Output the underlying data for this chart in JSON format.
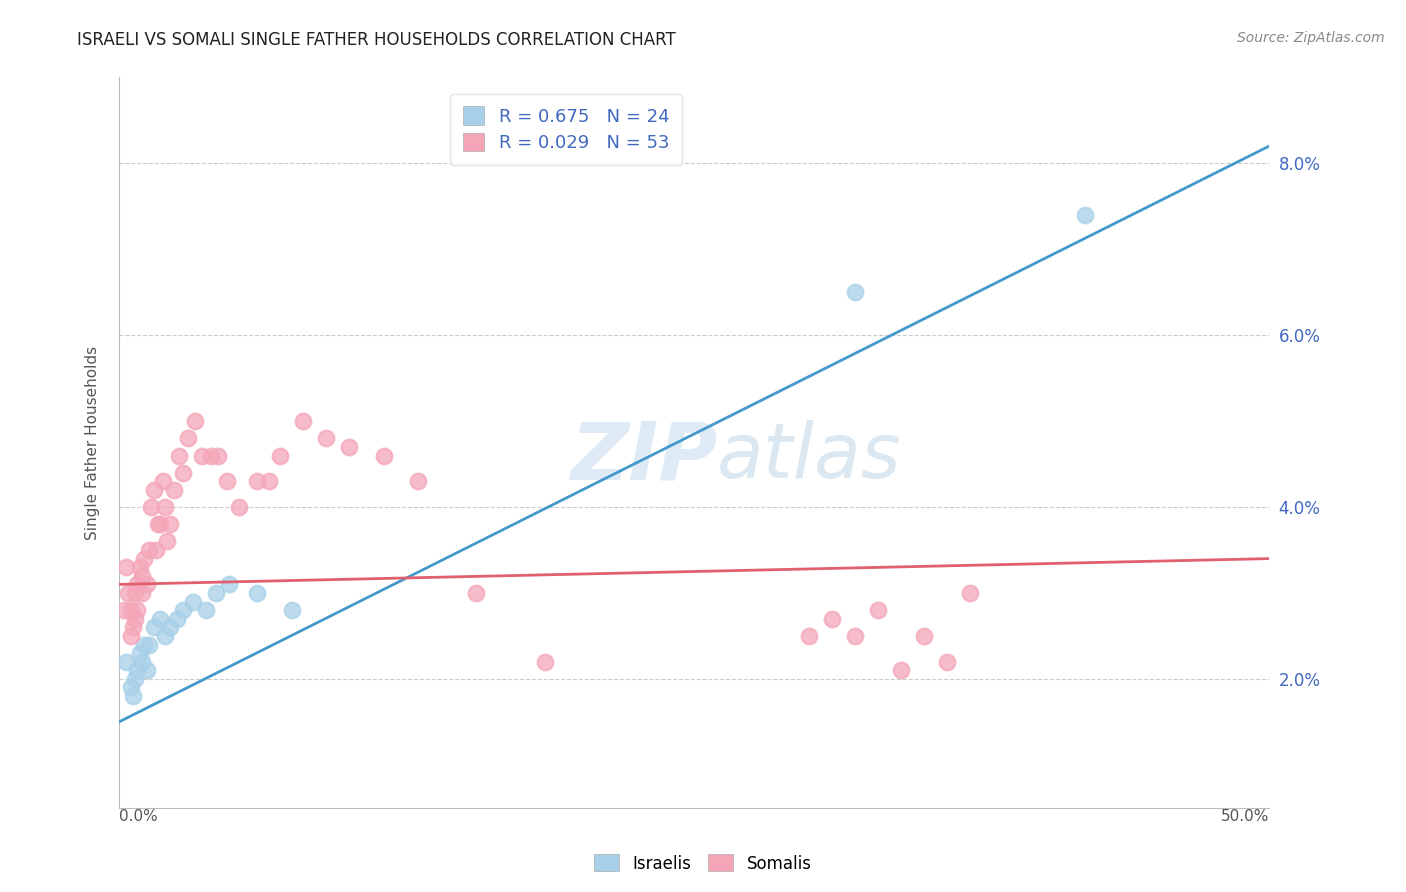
{
  "title": "ISRAELI VS SOMALI SINGLE FATHER HOUSEHOLDS CORRELATION CHART",
  "source_text": "Source: ZipAtlas.com",
  "ylabel": "Single Father Households",
  "xlim": [
    0.0,
    0.5
  ],
  "ylim": [
    0.005,
    0.09
  ],
  "yticks": [
    0.02,
    0.04,
    0.06,
    0.08
  ],
  "yticklabels": [
    "2.0%",
    "4.0%",
    "6.0%",
    "8.0%"
  ],
  "x_left_label": "0.0%",
  "x_right_label": "50.0%",
  "israeli_color": "#a8d0e8",
  "somali_color": "#f4a6b8",
  "israeli_line_color": "#4499cc",
  "somali_line_color": "#e06070",
  "R_israeli": 0.675,
  "N_israeli": 24,
  "R_somali": 0.029,
  "N_somali": 53,
  "legend_text_color": "#4169c0",
  "yaxis_label_color": "#4169c0",
  "background_color": "#ffffff",
  "grid_color": "#cccccc",
  "israeli_x": [
    0.003,
    0.005,
    0.006,
    0.007,
    0.008,
    0.009,
    0.01,
    0.011,
    0.012,
    0.013,
    0.015,
    0.018,
    0.02,
    0.022,
    0.025,
    0.028,
    0.032,
    0.038,
    0.042,
    0.048,
    0.06,
    0.075,
    0.32,
    0.42
  ],
  "israeli_y": [
    0.022,
    0.019,
    0.018,
    0.02,
    0.021,
    0.023,
    0.022,
    0.024,
    0.021,
    0.024,
    0.026,
    0.027,
    0.025,
    0.026,
    0.027,
    0.028,
    0.029,
    0.028,
    0.03,
    0.031,
    0.03,
    0.028,
    0.065,
    0.074
  ],
  "somali_x": [
    0.002,
    0.003,
    0.004,
    0.005,
    0.005,
    0.006,
    0.007,
    0.007,
    0.008,
    0.008,
    0.009,
    0.01,
    0.01,
    0.011,
    0.012,
    0.013,
    0.014,
    0.015,
    0.016,
    0.017,
    0.018,
    0.019,
    0.02,
    0.021,
    0.022,
    0.024,
    0.026,
    0.028,
    0.03,
    0.033,
    0.036,
    0.04,
    0.043,
    0.047,
    0.052,
    0.06,
    0.065,
    0.07,
    0.08,
    0.09,
    0.1,
    0.115,
    0.13,
    0.155,
    0.185,
    0.3,
    0.31,
    0.32,
    0.33,
    0.34,
    0.35,
    0.36,
    0.37
  ],
  "somali_y": [
    0.028,
    0.033,
    0.03,
    0.025,
    0.028,
    0.026,
    0.027,
    0.03,
    0.028,
    0.031,
    0.033,
    0.03,
    0.032,
    0.034,
    0.031,
    0.035,
    0.04,
    0.042,
    0.035,
    0.038,
    0.038,
    0.043,
    0.04,
    0.036,
    0.038,
    0.042,
    0.046,
    0.044,
    0.048,
    0.05,
    0.046,
    0.046,
    0.046,
    0.043,
    0.04,
    0.043,
    0.043,
    0.046,
    0.05,
    0.048,
    0.047,
    0.046,
    0.043,
    0.03,
    0.022,
    0.025,
    0.027,
    0.025,
    0.028,
    0.021,
    0.025,
    0.022,
    0.03
  ],
  "israeli_line_x": [
    0.0,
    0.5
  ],
  "israeli_line_y": [
    0.015,
    0.082
  ],
  "somali_line_x": [
    0.0,
    0.5
  ],
  "somali_line_y": [
    0.031,
    0.034
  ]
}
